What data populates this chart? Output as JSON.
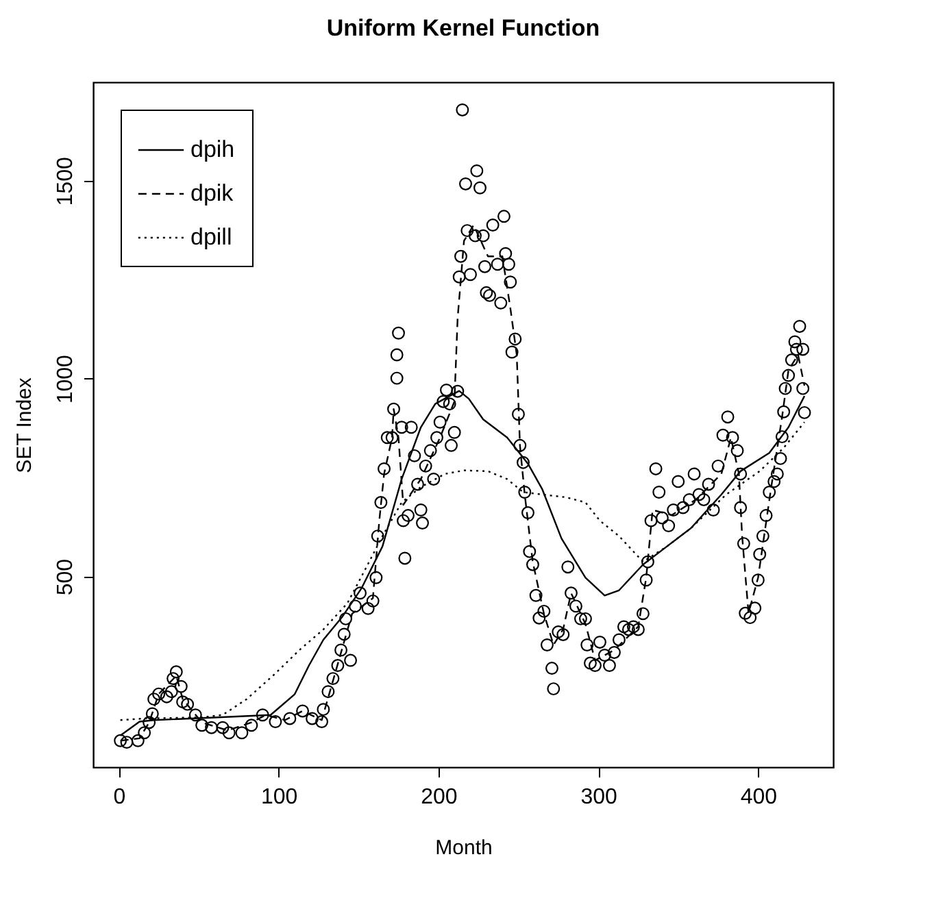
{
  "chart_data": {
    "type": "scatter",
    "title": "Uniform Kernel Function",
    "xlabel": "Month",
    "ylabel": "SET Index",
    "xlim": [
      -16,
      447
    ],
    "xticks": [
      0,
      100,
      200,
      300,
      400
    ],
    "ylim": [
      18,
      1749
    ],
    "yticks": [
      500,
      {
        "value": 1000,
        "label": "1000"
      },
      {
        "value": 1500,
        "label": "1500"
      }
    ],
    "grid": false,
    "legend": "top left",
    "series": [
      {
        "marker": "circle",
        "color": "#000000",
        "x": [
          1,
          5,
          12,
          16,
          19,
          21,
          22,
          25,
          30,
          33,
          34,
          36,
          39,
          40,
          43,
          48,
          52,
          58,
          65,
          69,
          77,
          83,
          90,
          98,
          107,
          115,
          121,
          127,
          128,
          131,
          134,
          137,
          139,
          141,
          142,
          145,
          148,
          151,
          156,
          159,
          161,
          162,
          164,
          166,
          168,
          171,
          172,
          174,
          174,
          175,
          177,
          178,
          179,
          181,
          183,
          185,
          187,
          189,
          190,
          192,
          195,
          197,
          199,
          201,
          203,
          205,
          207,
          208,
          210,
          212,
          213,
          214,
          215,
          217,
          218,
          220,
          223,
          224,
          226,
          228,
          229,
          230,
          232,
          234,
          237,
          239,
          241,
          242,
          244,
          245,
          246,
          248,
          250,
          251,
          253,
          254,
          256,
          257,
          259,
          261,
          263,
          266,
          268,
          271,
          272,
          275,
          278,
          281,
          283,
          286,
          289,
          292,
          293,
          295,
          298,
          301,
          304,
          307,
          310,
          313,
          316,
          319,
          322,
          325,
          328,
          330,
          331,
          333,
          336,
          338,
          340,
          344,
          347,
          350,
          353,
          357,
          360,
          363,
          366,
          369,
          372,
          375,
          378,
          381,
          384,
          387,
          389,
          389,
          391,
          392,
          395,
          398,
          400,
          401,
          403,
          405,
          407,
          410,
          412,
          414,
          415,
          416,
          417,
          419,
          421,
          423,
          424,
          426,
          428,
          428,
          429
        ],
        "values": [
          85,
          81,
          85,
          105,
          131,
          153,
          190,
          203,
          196,
          209,
          242,
          259,
          222,
          183,
          177,
          150,
          124,
          118,
          118,
          105,
          105,
          124,
          150,
          133,
          141,
          160,
          141,
          133,
          164,
          209,
          242,
          275,
          314,
          354,
          393,
          288,
          425,
          458,
          419,
          438,
          497,
          602,
          687,
          772,
          851,
          851,
          923,
          1001,
          1060,
          1115,
          877,
          641,
          546,
          654,
          877,
          805,
          733,
          668,
          635,
          779,
          818,
          746,
          851,
          890,
          942,
          971,
          936,
          831,
          864,
          968,
          1257,
          1309,
          1679,
          1492,
          1374,
          1263,
          1361,
          1525,
          1482,
          1361,
          1283,
          1217,
          1210,
          1388,
          1289,
          1191,
          1410,
          1316,
          1289,
          1244,
          1067,
          1100,
          910,
          831,
          788,
          713,
          661,
          563,
          530,
          452,
          395,
          412,
          327,
          268,
          216,
          360,
          353,
          524,
          458,
          425,
          393,
          393,
          327,
          281,
          275,
          334,
          301,
          275,
          308,
          340,
          373,
          366,
          373,
          366,
          406,
          491,
          537,
          641,
          772,
          713,
          648,
          628,
          668,
          740,
          674,
          694,
          759,
          707,
          694,
          733,
          668,
          779,
          857,
          903,
          851,
          818,
          759,
          674,
          583,
          407,
          396,
          420,
          491,
          556,
          602,
          654,
          713,
          740,
          759,
          798,
          853,
          916,
          975,
          1008,
          1047,
          1093,
          1074,
          1132,
          1074,
          975,
          914
        ]
      },
      {
        "type": "line",
        "name": "dpih",
        "color": "#000000",
        "line_style": "solid",
        "x": [
          1,
          13,
          22,
          62,
          95,
          110,
          119,
          128,
          140,
          152,
          165,
          177,
          189,
          198,
          207,
          213,
          219,
          228,
          243,
          256,
          265,
          277,
          292,
          304,
          313,
          328,
          343,
          358,
          377,
          389,
          407,
          419,
          429
        ],
        "values": [
          98,
          133,
          137,
          144,
          150,
          202,
          275,
          340,
          399,
          471,
          576,
          746,
          877,
          936,
          956,
          969,
          949,
          897,
          851,
          785,
          720,
          596,
          497,
          452,
          465,
          530,
          576,
          622,
          707,
          766,
          812,
          877,
          956
        ]
      },
      {
        "type": "line",
        "name": "dpik",
        "color": "#000000",
        "line_style": "dashed",
        "x": [
          1,
          13,
          19,
          25,
          36,
          40,
          52,
          68,
          83,
          92,
          104,
          115,
          127,
          134,
          146,
          159,
          163,
          166,
          171,
          172,
          175,
          178,
          189,
          201,
          210,
          212,
          216,
          222,
          231,
          240,
          245,
          249,
          251,
          254,
          259,
          266,
          272,
          278,
          283,
          292,
          298,
          310,
          325,
          330,
          334,
          346,
          361,
          377,
          383,
          388,
          390,
          394,
          400,
          408,
          415,
          419,
          425,
          429
        ],
        "values": [
          85,
          91,
          131,
          203,
          249,
          190,
          131,
          111,
          131,
          150,
          137,
          160,
          137,
          236,
          406,
          445,
          641,
          759,
          851,
          923,
          851,
          681,
          746,
          851,
          942,
          1152,
          1348,
          1388,
          1309,
          1309,
          1178,
          1060,
          831,
          707,
          537,
          406,
          327,
          366,
          458,
          380,
          288,
          314,
          373,
          497,
          668,
          655,
          694,
          759,
          851,
          759,
          603,
          407,
          497,
          720,
          903,
          1021,
          1060,
          982
        ]
      },
      {
        "type": "line",
        "name": "dpill",
        "color": "#000000",
        "line_style": "dotted",
        "x": [
          1,
          16,
          52,
          65,
          80,
          98,
          113,
          128,
          143,
          155,
          165,
          177,
          189,
          204,
          216,
          231,
          243,
          253,
          265,
          280,
          292,
          301,
          313,
          328,
          343,
          358,
          380,
          401,
          416,
          429
        ],
        "values": [
          137,
          141,
          144,
          150,
          190,
          255,
          314,
          366,
          432,
          524,
          602,
          687,
          726,
          759,
          768,
          766,
          746,
          713,
          707,
          700,
          687,
          641,
          602,
          537,
          576,
          622,
          707,
          766,
          825,
          890
        ]
      }
    ]
  }
}
